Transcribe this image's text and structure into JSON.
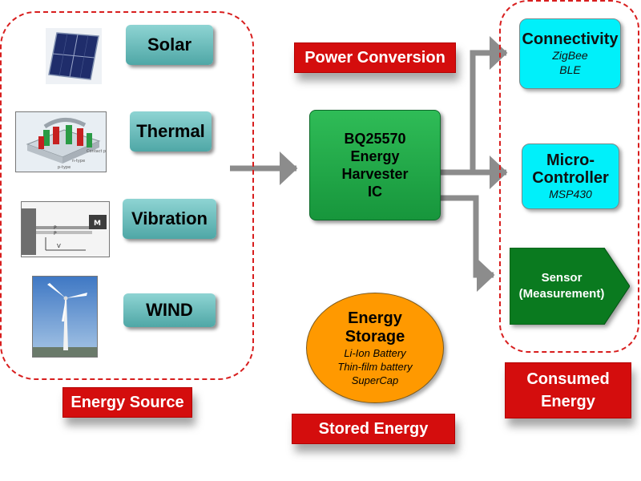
{
  "sources": {
    "items": [
      {
        "label": "Solar"
      },
      {
        "label": "Thermal"
      },
      {
        "label": "Vibration"
      },
      {
        "label": "WIND"
      }
    ],
    "caption": "Energy Source"
  },
  "conversion": {
    "caption": "Power Conversion",
    "ic_lines": [
      "BQ25570",
      "Energy",
      "Harvester",
      "IC"
    ]
  },
  "storage": {
    "title_lines": [
      "Energy",
      "Storage"
    ],
    "items": [
      "Li-Ion Battery",
      "Thin-film battery",
      "SuperCap"
    ],
    "caption": "Stored Energy"
  },
  "consumers": {
    "connectivity": {
      "title": "Connectivity",
      "sub": [
        "ZigBee",
        "BLE"
      ]
    },
    "micro": {
      "title_lines": [
        "Micro-",
        "Controller"
      ],
      "sub": "MSP430"
    },
    "sensor": {
      "lines": [
        "Sensor",
        "(Measurement)"
      ]
    },
    "caption_lines": [
      "Consumed",
      "Energy"
    ]
  },
  "colors": {
    "dashed_border": "#d81e1e",
    "label_red": "#d40d0d",
    "source_teal": "#5fb4b3",
    "ic_green": "#1fa84a",
    "storage_orange": "#ff9900",
    "cyan": "#00f0fa",
    "sensor_green": "#0a7a1f",
    "arrow_gray": "#8c8c8c"
  },
  "photo_labels": {
    "thermal": [
      "Contact pads",
      "n-type",
      "p-type"
    ],
    "vibration": [
      "M",
      "P",
      "V"
    ]
  }
}
